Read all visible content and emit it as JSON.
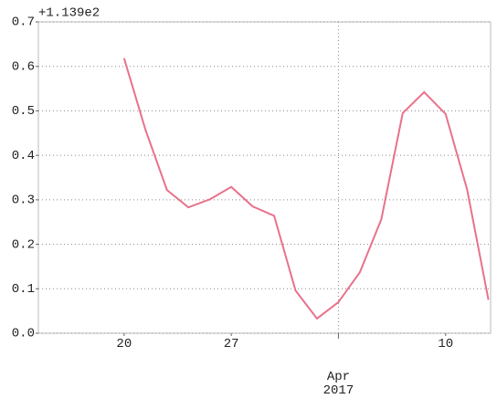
{
  "chart_data": {
    "type": "line",
    "offset_text": "+1.139e2",
    "categories": [
      "20",
      null,
      null,
      null,
      null,
      "27",
      null,
      null,
      null,
      null,
      "Apr\n2017",
      null,
      null,
      null,
      null,
      "10",
      null,
      null
    ],
    "series": [
      {
        "color": "#e8728b",
        "values": [
          0.618,
          0.457,
          0.322,
          0.283,
          0.301,
          0.329,
          0.285,
          0.264,
          0.096,
          0.033,
          0.07,
          0.137,
          0.256,
          0.495,
          0.542,
          0.493,
          0.324,
          0.075
        ]
      }
    ],
    "xlim": [
      -4,
      17.1
    ],
    "ylim": [
      0,
      0.7
    ],
    "yticks": [
      {
        "value": 0,
        "label": "0.0"
      },
      0.1,
      0.2,
      0.3,
      0.4,
      0.5,
      0.6,
      0.7
    ],
    "grid": true
  }
}
